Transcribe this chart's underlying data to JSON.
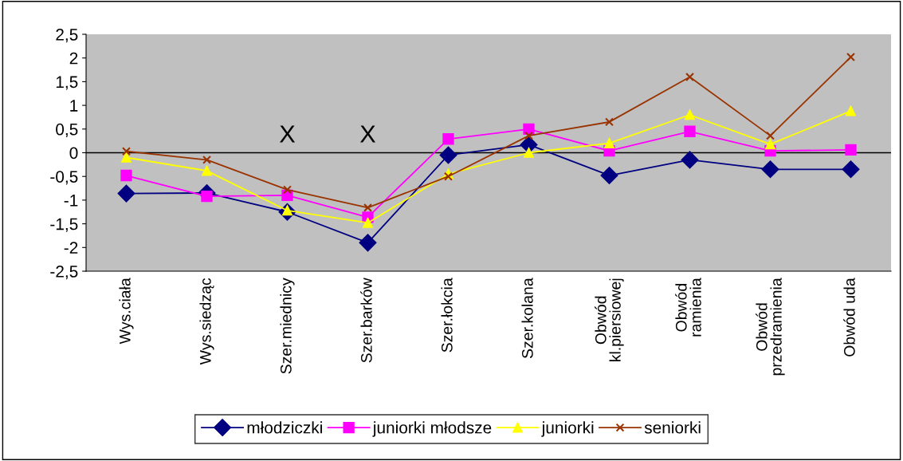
{
  "chart_data": {
    "type": "line",
    "categories": [
      "Wys.ciała",
      "Wys.siedząc",
      "Szer.miednicy",
      "Szer.barków",
      "Szer.łokcia",
      "Szer.kolana",
      "Obwód\nkl.piersiowej",
      "Obwód\nramienia",
      "Obwód\nprzedramienia",
      "Obwód uda"
    ],
    "series": [
      {
        "name": "młodziczki",
        "color": "#000080",
        "marker": "diamond",
        "values": [
          -0.86,
          -0.85,
          -1.25,
          -1.9,
          -0.05,
          0.17,
          -0.48,
          -0.15,
          -0.35,
          -0.35
        ]
      },
      {
        "name": "juniorki młodsze",
        "color": "#ff00ff",
        "marker": "square",
        "values": [
          -0.48,
          -0.92,
          -0.9,
          -1.36,
          0.29,
          0.5,
          0.04,
          0.45,
          0.04,
          0.06
        ]
      },
      {
        "name": "juniorki",
        "color": "#ffff00",
        "marker": "triangle",
        "values": [
          -0.1,
          -0.38,
          -1.22,
          -1.48,
          -0.45,
          0.0,
          0.2,
          0.8,
          0.18,
          0.88
        ]
      },
      {
        "name": "seniorki",
        "color": "#993300",
        "marker": "cross",
        "values": [
          0.03,
          -0.15,
          -0.78,
          -1.16,
          -0.5,
          0.36,
          0.65,
          1.6,
          0.36,
          2.02
        ]
      }
    ],
    "ylim": [
      -2.5,
      2.5
    ],
    "yticks": [
      {
        "value": -2.5,
        "label": "-2,5"
      },
      -2,
      {
        "value": -1.5,
        "label": "-1,5"
      },
      -1,
      {
        "value": -0.5,
        "label": "-0,5"
      },
      0,
      {
        "value": 0.5,
        "label": "0,5"
      },
      1,
      {
        "value": 1.5,
        "label": "1,5"
      },
      2,
      {
        "value": 2.5,
        "label": "2,5"
      }
    ],
    "annotations": [
      "X",
      "X"
    ],
    "ref_lines": [
      {
        "axis": "y",
        "value": 0,
        "color": "#000000",
        "line_style": "solid"
      }
    ],
    "grid": false,
    "legend": "bottom",
    "line_style": "solid"
  }
}
